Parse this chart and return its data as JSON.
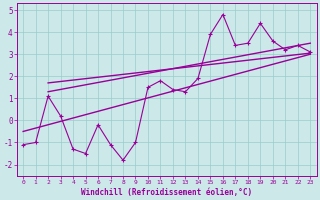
{
  "xlabel": "Windchill (Refroidissement éolien,°C)",
  "bg_color": "#cce8e8",
  "line_color": "#990099",
  "grid_color": "#99cccc",
  "x_data": [
    0,
    1,
    2,
    3,
    4,
    5,
    6,
    7,
    8,
    9,
    10,
    11,
    12,
    13,
    14,
    15,
    16,
    17,
    18,
    19,
    20,
    21,
    22,
    23
  ],
  "y_data": [
    -1.1,
    -1.0,
    1.1,
    0.2,
    -1.3,
    -1.5,
    -0.2,
    -1.1,
    -1.8,
    -1.0,
    1.5,
    1.8,
    1.4,
    1.3,
    1.9,
    3.9,
    4.8,
    3.4,
    3.5,
    4.4,
    3.6,
    3.2,
    3.4,
    3.1
  ],
  "xlim": [
    -0.5,
    23.5
  ],
  "ylim": [
    -2.5,
    5.3
  ],
  "yticks": [
    -2,
    -1,
    0,
    1,
    2,
    3,
    4,
    5
  ],
  "xticks": [
    0,
    1,
    2,
    3,
    4,
    5,
    6,
    7,
    8,
    9,
    10,
    11,
    12,
    13,
    14,
    15,
    16,
    17,
    18,
    19,
    20,
    21,
    22,
    23
  ],
  "reg_upper_start": 1.3,
  "reg_upper_end": 3.5,
  "reg_mid_start": 1.7,
  "reg_mid_end": 3.05,
  "reg_lower_start": -0.5,
  "reg_lower_end": 3.0
}
